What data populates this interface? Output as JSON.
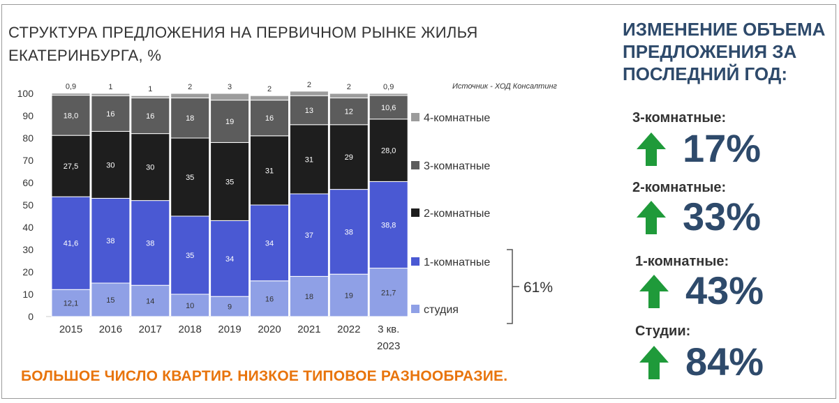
{
  "chart_data": {
    "type": "bar",
    "stacked": true,
    "title": "СТРУКТУРА ПРЕДЛОЖЕНИЯ НА ПЕРВИЧНОМ РЫНКЕ ЖИЛЬЯ ЕКАТЕРИНБУРГА, %",
    "source": "Источник - ХОД Консалтинг",
    "categories": [
      "2015",
      "2016",
      "2017",
      "2018",
      "2019",
      "2020",
      "2021",
      "2022",
      "3 кв. 2023"
    ],
    "category_lines": [
      [
        "2015"
      ],
      [
        "2016"
      ],
      [
        "2017"
      ],
      [
        "2018"
      ],
      [
        "2019"
      ],
      [
        "2020"
      ],
      [
        "2021"
      ],
      [
        "2022"
      ],
      [
        "3 кв.",
        "2023"
      ]
    ],
    "yticks": [
      "0",
      "10",
      "20",
      "30",
      "40",
      "50",
      "60",
      "70",
      "80",
      "90",
      "100"
    ],
    "ylim": [
      0,
      100
    ],
    "series": [
      {
        "name": "студия",
        "color": "#8fa0e6",
        "label_color": "#333333",
        "values": [
          12.1,
          15,
          14,
          10,
          9,
          16,
          18,
          19,
          21.7
        ],
        "labels": [
          "12,1",
          "15",
          "14",
          "10",
          "9",
          "16",
          "18",
          "19",
          "21,7"
        ]
      },
      {
        "name": "1-комнатные",
        "color": "#4a59d3",
        "label_color": "#ffffff",
        "values": [
          41.6,
          38,
          38,
          35,
          34,
          34,
          37,
          38,
          38.8
        ],
        "labels": [
          "41,6",
          "38",
          "38",
          "35",
          "34",
          "34",
          "37",
          "38",
          "38,8"
        ]
      },
      {
        "name": "2-комнатные",
        "color": "#1e1e1e",
        "label_color": "#ffffff",
        "values": [
          27.5,
          30,
          30,
          35,
          35,
          31,
          31,
          29,
          28.0
        ],
        "labels": [
          "27,5",
          "30",
          "30",
          "35",
          "35",
          "31",
          "31",
          "29",
          "28,0"
        ]
      },
      {
        "name": "3-комнатные",
        "color": "#5c5c5c",
        "label_color": "#ffffff",
        "values": [
          18.0,
          16,
          16,
          18,
          19,
          16,
          13,
          12,
          10.6
        ],
        "labels": [
          "18,0",
          "16",
          "16",
          "18",
          "19",
          "16",
          "13",
          "12",
          "10,6"
        ]
      },
      {
        "name": "4-комнатные",
        "color": "#9c9c9c",
        "label_color": "#333333",
        "values": [
          0.9,
          1,
          1,
          2,
          3,
          2,
          2,
          2,
          0.9
        ],
        "labels": [
          "0,9",
          "1",
          "1",
          "2",
          "3",
          "2",
          "2",
          "2",
          "0,9"
        ]
      }
    ],
    "legend_order": [
      "4-комнатные",
      "3-комнатные",
      "2-комнатные",
      "1-комнатные",
      "студия"
    ],
    "bracket_annotation": "61%"
  },
  "tagline": "БОЛЬШОЕ ЧИСЛО КВАРТИР. НИЗКОЕ ТИПОВОЕ РАЗНООБРАЗИЕ.",
  "right_panel": {
    "title": "ИЗМЕНЕНИЕ ОБЪЕМА ПРЕДЛОЖЕНИЯ ЗА ПОСЛЕДНИЙ ГОД:",
    "metrics": [
      {
        "label": "3-комнатные:",
        "value": "17%",
        "icon": "arrow-up-icon"
      },
      {
        "label": "2-комнатные:",
        "value": "33%",
        "icon": "arrow-up-icon"
      },
      {
        "label": "1-комнатные:",
        "value": "43%",
        "icon": "arrow-up-icon"
      },
      {
        "label": "Студии:",
        "value": "84%",
        "icon": "arrow-up-icon"
      }
    ],
    "arrow_color": "#1f9a3a"
  }
}
